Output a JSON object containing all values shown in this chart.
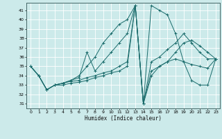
{
  "xlabel": "Humidex (Indice chaleur)",
  "bg_color": "#cceaea",
  "grid_color": "#ffffff",
  "line_color": "#1a6b6b",
  "xlim": [
    -0.5,
    23.5
  ],
  "ylim": [
    30.5,
    41.8
  ],
  "yticks": [
    31,
    32,
    33,
    34,
    35,
    36,
    37,
    38,
    39,
    40,
    41
  ],
  "xticks": [
    0,
    1,
    2,
    3,
    4,
    5,
    6,
    7,
    8,
    9,
    10,
    11,
    12,
    13,
    14,
    15,
    16,
    17,
    18,
    19,
    20,
    21,
    22,
    23
  ],
  "lines": [
    {
      "x": [
        0,
        1,
        2,
        3,
        4,
        5,
        6,
        7,
        8,
        9,
        10,
        11,
        12,
        13,
        14,
        15,
        16,
        17,
        18,
        19,
        20,
        21,
        22,
        23
      ],
      "y": [
        35.0,
        34.0,
        32.5,
        33.0,
        33.2,
        33.5,
        33.8,
        36.5,
        34.5,
        35.5,
        36.5,
        37.5,
        38.5,
        41.5,
        31.0,
        34.0,
        35.0,
        35.5,
        36.5,
        37.5,
        37.8,
        37.2,
        36.5,
        35.8
      ]
    },
    {
      "x": [
        0,
        1,
        2,
        3,
        4,
        5,
        6,
        7,
        8,
        9,
        10,
        11,
        12,
        13,
        14,
        15,
        16,
        17,
        18,
        19,
        20,
        21,
        22,
        23
      ],
      "y": [
        35.0,
        34.0,
        32.5,
        33.0,
        33.2,
        33.5,
        34.0,
        35.0,
        36.0,
        37.5,
        38.5,
        39.5,
        40.0,
        41.5,
        31.0,
        41.5,
        41.0,
        40.5,
        38.5,
        35.5,
        33.5,
        33.0,
        33.0,
        35.8
      ]
    },
    {
      "x": [
        0,
        1,
        2,
        3,
        4,
        5,
        6,
        7,
        8,
        9,
        10,
        11,
        12,
        13,
        14,
        15,
        16,
        17,
        18,
        19,
        20,
        21,
        22,
        23
      ],
      "y": [
        35.0,
        34.0,
        32.5,
        33.0,
        33.2,
        33.4,
        33.5,
        33.8,
        34.0,
        34.3,
        34.5,
        35.0,
        35.5,
        41.5,
        31.0,
        35.5,
        36.0,
        36.8,
        37.5,
        38.5,
        37.5,
        36.5,
        35.8,
        35.8
      ]
    },
    {
      "x": [
        0,
        1,
        2,
        3,
        4,
        5,
        6,
        7,
        8,
        9,
        10,
        11,
        12,
        13,
        14,
        15,
        16,
        17,
        18,
        19,
        20,
        21,
        22,
        23
      ],
      "y": [
        35.0,
        34.0,
        32.5,
        33.0,
        33.0,
        33.2,
        33.3,
        33.5,
        33.8,
        34.0,
        34.3,
        34.5,
        35.0,
        41.5,
        31.0,
        34.5,
        35.0,
        35.5,
        35.8,
        35.5,
        35.2,
        35.0,
        34.8,
        35.8
      ]
    }
  ]
}
